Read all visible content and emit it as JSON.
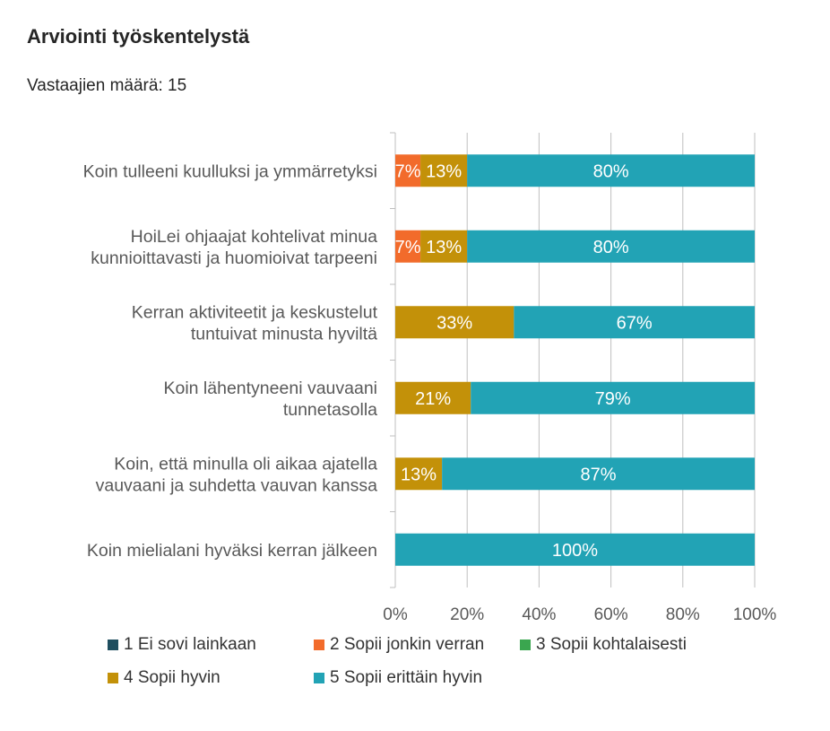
{
  "title": "Arviointi työskentelystä",
  "subtitle": "Vastaajien määrä: 15",
  "chart_data": {
    "type": "bar",
    "orientation": "horizontal",
    "stacked": "percent",
    "categories": [
      [
        "Koin tulleeni kuulluksi ja ymmärretyksi"
      ],
      [
        "HoiLei ohjaajat kohtelivat minua",
        "kunnioittavasti ja huomioivat tarpeeni"
      ],
      [
        "Kerran aktiviteetit ja keskustelut",
        "tuntuivat minusta hyviltä"
      ],
      [
        "Koin lähentyneeni vauvaani",
        "tunnetasolla"
      ],
      [
        "Koin, että minulla oli aikaa ajatella",
        "vauvaani ja suhdetta vauvan kanssa"
      ],
      [
        "Koin mielialani hyväksi kerran jälkeen"
      ]
    ],
    "series": [
      {
        "name": "1 Ei sovi lainkaan",
        "color": "#1f4e5f",
        "values": [
          0,
          0,
          0,
          0,
          0,
          0
        ],
        "labels": [
          "",
          "",
          "",
          "",
          "",
          ""
        ]
      },
      {
        "name": "2 Sopii jonkin verran",
        "color": "#f26b2b",
        "values": [
          7,
          7,
          0,
          0,
          0,
          0
        ],
        "labels": [
          "7%",
          "7%",
          "",
          "",
          "",
          ""
        ]
      },
      {
        "name": "3 Sopii kohtalaisesti",
        "color": "#3aa64f",
        "values": [
          0,
          0,
          0,
          0,
          0,
          0
        ],
        "labels": [
          "",
          "",
          "",
          "",
          "",
          ""
        ]
      },
      {
        "name": "4 Sopii hyvin",
        "color": "#c39109",
        "values": [
          13,
          13,
          33,
          21,
          13,
          0
        ],
        "labels": [
          "13%",
          "13%",
          "33%",
          "21%",
          "13%",
          ""
        ]
      },
      {
        "name": "5 Sopii erittäin hyvin",
        "color": "#22a3b5",
        "values": [
          80,
          80,
          67,
          79,
          87,
          100
        ],
        "labels": [
          "80%",
          "80%",
          "67%",
          "79%",
          "87%",
          "100%"
        ]
      }
    ],
    "xticks": [
      "0%",
      "20%",
      "40%",
      "60%",
      "80%",
      "100%"
    ],
    "xlim": [
      0,
      100
    ],
    "grid": true,
    "legend_position": "bottom"
  }
}
